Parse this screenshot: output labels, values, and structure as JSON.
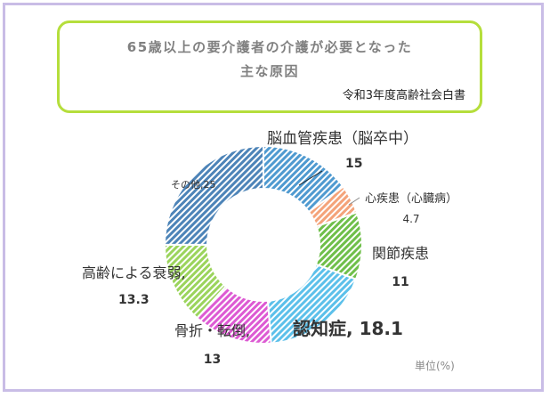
{
  "chart_data": {
    "type": "pie",
    "title_lines": [
      "65歳以上の要介護者の介護が必要となった",
      "主な原因"
    ],
    "source": "令和3年度高齢社会白書",
    "unit": "単位(%)",
    "slices": [
      {
        "name": "脳血管疾患（脳卒中）",
        "value": 15,
        "value_label": "15",
        "color": "#4f9ad0"
      },
      {
        "name": "心疾患（心臓病）",
        "value": 4.7,
        "value_label": "4.7",
        "color": "#f4a37a"
      },
      {
        "name": "関節疾患",
        "value": 11,
        "value_label": "11",
        "color": "#6fbf4a"
      },
      {
        "name": "認知症,",
        "value": 18.1,
        "value_label": "18.1",
        "color": "#5cc0ea"
      },
      {
        "name": "骨折・転倒,",
        "value": 13,
        "value_label": "13",
        "color": "#dd5ad3"
      },
      {
        "name": "高齢による衰弱,",
        "value": 13.3,
        "value_label": "13.3",
        "color": "#9bd45c"
      },
      {
        "name": "その他,",
        "value": 25,
        "value_label": "25",
        "color": "#4d84b8"
      }
    ]
  }
}
